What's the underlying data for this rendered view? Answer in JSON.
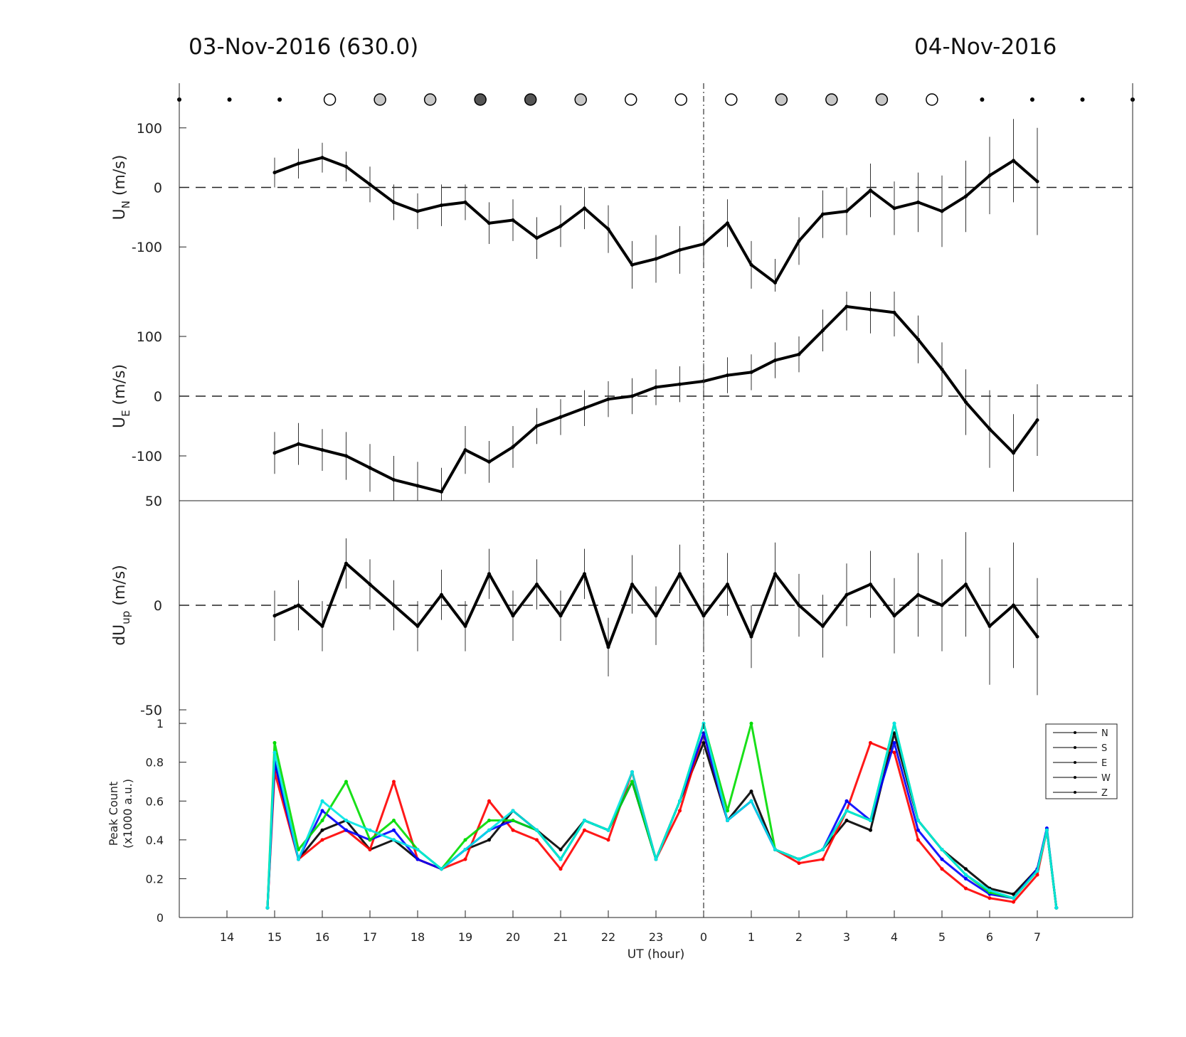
{
  "titles": {
    "left": "03-Nov-2016 (630.0)",
    "right": "04-Nov-2016"
  },
  "chart_data": [
    {
      "type": "scatter",
      "panel": "moon-indicator",
      "x": [
        "13",
        "14",
        "15",
        "16",
        "17",
        "18",
        "19",
        "20",
        "21",
        "22",
        "23",
        "0",
        "1",
        "2",
        "3",
        "4",
        "5",
        "6",
        "7",
        "8"
      ],
      "marker": [
        "dot",
        "dot",
        "dot",
        "open",
        "light",
        "light",
        "dark",
        "dark",
        "light",
        "open",
        "open",
        "open",
        "light",
        "light",
        "light",
        "open",
        "dot",
        "dot",
        "dot",
        "dot"
      ],
      "colors": {
        "open": "#ffffff",
        "light": "#c8c8c8",
        "dark": "#555555",
        "dot": "#000000"
      }
    },
    {
      "type": "line",
      "panel": "U_N",
      "ylabel": "U_N (m/s)",
      "ylabel_main": "U",
      "ylabel_sub": "N",
      "ylabel_unit": " (m/s)",
      "ylim": [
        -175,
        175
      ],
      "yticks": [
        100,
        0,
        -100
      ],
      "ytick_labels": [
        "100",
        "0",
        "-100"
      ],
      "x_hours_since_13UT": [
        2.0,
        2.5,
        3.0,
        3.5,
        4.0,
        4.5,
        5.0,
        5.5,
        6.0,
        6.5,
        7.0,
        7.5,
        8.0,
        8.5,
        9.0,
        9.5,
        10.0,
        10.5,
        11.0,
        11.5,
        12.0,
        12.5,
        13.0,
        13.5,
        14.0,
        14.5,
        15.0,
        15.5,
        16.0,
        16.5,
        17.0,
        17.5,
        18.0
      ],
      "values": [
        25,
        40,
        50,
        35,
        5,
        -25,
        -40,
        -30,
        -25,
        -60,
        -55,
        -85,
        -65,
        -35,
        -70,
        -130,
        -120,
        -105,
        -95,
        -60,
        -130,
        -160,
        -90,
        -45,
        -40,
        -5,
        -35,
        -25,
        -40,
        -15,
        20,
        45,
        10
      ],
      "errors": [
        25,
        25,
        25,
        25,
        30,
        30,
        30,
        35,
        30,
        35,
        35,
        35,
        35,
        35,
        40,
        40,
        40,
        40,
        40,
        40,
        40,
        40,
        40,
        40,
        40,
        45,
        45,
        50,
        60,
        60,
        65,
        70,
        90
      ]
    },
    {
      "type": "line",
      "panel": "U_E",
      "ylabel": "U_E (m/s)",
      "ylabel_main": "U",
      "ylabel_sub": "E",
      "ylabel_unit": " (m/s)",
      "ylim": [
        -175,
        175
      ],
      "yticks": [
        100,
        0,
        -100
      ],
      "ytick_labels": [
        "100",
        "0",
        "-100"
      ],
      "x_hours_since_13UT": [
        2.0,
        2.5,
        3.0,
        3.5,
        4.0,
        4.5,
        5.0,
        5.5,
        6.0,
        6.5,
        7.0,
        7.5,
        8.0,
        8.5,
        9.0,
        9.5,
        10.0,
        10.5,
        11.0,
        11.5,
        12.0,
        12.5,
        13.0,
        13.5,
        14.0,
        14.5,
        15.0,
        15.5,
        16.0,
        16.5,
        17.0,
        17.5,
        18.0
      ],
      "values": [
        -95,
        -80,
        -90,
        -100,
        -120,
        -140,
        -150,
        -160,
        -90,
        -110,
        -85,
        -50,
        -35,
        -20,
        -5,
        0,
        15,
        20,
        25,
        35,
        40,
        60,
        70,
        110,
        150,
        145,
        140,
        95,
        45,
        -10,
        -55,
        -95,
        -40
      ],
      "errors": [
        35,
        35,
        35,
        40,
        40,
        40,
        40,
        40,
        40,
        35,
        35,
        30,
        30,
        30,
        30,
        30,
        30,
        30,
        30,
        30,
        30,
        30,
        30,
        35,
        40,
        40,
        40,
        40,
        45,
        55,
        65,
        65,
        60
      ]
    },
    {
      "type": "line",
      "panel": "dU_up",
      "ylabel": "dU_up (m/s)",
      "ylabel_main": "dU",
      "ylabel_sub": "up",
      "ylabel_unit": " (m/s)",
      "ylim": [
        -50,
        50
      ],
      "yticks": [
        50,
        0,
        -50
      ],
      "ytick_labels": [
        "50",
        "0",
        "-50"
      ],
      "x_hours_since_13UT": [
        2.0,
        2.5,
        3.0,
        3.5,
        4.0,
        4.5,
        5.0,
        5.5,
        6.0,
        6.5,
        7.0,
        7.5,
        8.0,
        8.5,
        9.0,
        9.5,
        10.0,
        10.5,
        11.0,
        11.5,
        12.0,
        12.5,
        13.0,
        13.5,
        14.0,
        14.5,
        15.0,
        15.5,
        16.0,
        16.5,
        17.0,
        17.5,
        18.0
      ],
      "values": [
        -5,
        0,
        -10,
        20,
        10,
        0,
        -10,
        5,
        -10,
        15,
        -5,
        10,
        -5,
        15,
        -20,
        10,
        -5,
        15,
        -5,
        10,
        -15,
        15,
        0,
        -10,
        5,
        10,
        -5,
        5,
        0,
        10,
        -10,
        0,
        -15
      ],
      "errors": [
        12,
        12,
        12,
        12,
        12,
        12,
        12,
        12,
        12,
        12,
        12,
        12,
        12,
        12,
        14,
        14,
        14,
        14,
        15,
        15,
        15,
        15,
        15,
        15,
        15,
        16,
        18,
        20,
        22,
        25,
        28,
        30,
        28
      ]
    },
    {
      "type": "line",
      "panel": "peak-count",
      "ylabel": "Peak Count",
      "ylabel2": "(x1000 a.u.)",
      "xlabel": "UT (hour)",
      "ylim": [
        0,
        1.0
      ],
      "yticks": [
        1,
        0.8,
        0.6,
        0.4,
        0.2,
        0
      ],
      "ytick_labels": [
        "1",
        "0.8",
        "0.6",
        "0.4",
        "0.2",
        "0"
      ],
      "xticks": [
        "14",
        "15",
        "16",
        "17",
        "18",
        "19",
        "20",
        "21",
        "22",
        "23",
        "0",
        "1",
        "2",
        "3",
        "4",
        "5",
        "6",
        "7"
      ],
      "x_hours_since_13UT": [
        1.85,
        2.0,
        2.5,
        3.0,
        3.5,
        4.0,
        4.5,
        5.0,
        5.5,
        6.0,
        6.5,
        7.0,
        7.5,
        8.0,
        8.5,
        9.0,
        9.5,
        10.0,
        10.5,
        11.0,
        11.5,
        12.0,
        12.5,
        13.0,
        13.5,
        14.0,
        14.5,
        15.0,
        15.5,
        16.0,
        16.5,
        17.0,
        17.5,
        18.0,
        18.2,
        18.4
      ],
      "series": [
        {
          "name": "N",
          "color": "#000000",
          "values": [
            0.05,
            0.8,
            0.3,
            0.45,
            0.5,
            0.35,
            0.4,
            0.3,
            0.25,
            0.35,
            0.4,
            0.55,
            0.45,
            0.35,
            0.5,
            0.45,
            0.7,
            0.3,
            0.6,
            0.9,
            0.5,
            0.65,
            0.35,
            0.3,
            0.35,
            0.5,
            0.45,
            0.95,
            0.5,
            0.35,
            0.25,
            0.15,
            0.12,
            0.25,
            0.45,
            0.05
          ]
        },
        {
          "name": "S",
          "color": "#ff0000",
          "values": [
            0.05,
            0.75,
            0.3,
            0.4,
            0.45,
            0.35,
            0.7,
            0.3,
            0.25,
            0.3,
            0.6,
            0.45,
            0.4,
            0.25,
            0.45,
            0.4,
            0.75,
            0.3,
            0.55,
            0.95,
            0.5,
            0.6,
            0.35,
            0.28,
            0.3,
            0.55,
            0.9,
            0.85,
            0.4,
            0.25,
            0.15,
            0.1,
            0.08,
            0.22,
            0.45,
            0.05
          ]
        },
        {
          "name": "E",
          "color": "#0000ff",
          "values": [
            0.05,
            0.8,
            0.3,
            0.55,
            0.45,
            0.4,
            0.45,
            0.3,
            0.25,
            0.35,
            0.45,
            0.5,
            0.45,
            0.3,
            0.5,
            0.45,
            0.7,
            0.3,
            0.6,
            0.95,
            0.5,
            0.6,
            0.35,
            0.3,
            0.35,
            0.6,
            0.5,
            0.9,
            0.45,
            0.3,
            0.2,
            0.12,
            0.1,
            0.25,
            0.46,
            0.05
          ]
        },
        {
          "name": "W",
          "color": "#00dd00",
          "values": [
            0.05,
            0.9,
            0.35,
            0.5,
            0.7,
            0.4,
            0.5,
            0.35,
            0.25,
            0.4,
            0.5,
            0.5,
            0.45,
            0.3,
            0.5,
            0.45,
            0.7,
            0.3,
            0.6,
            1.0,
            0.55,
            1.0,
            0.35,
            0.3,
            0.35,
            0.55,
            0.5,
            1.0,
            0.5,
            0.35,
            0.22,
            0.13,
            0.1,
            0.24,
            0.45,
            0.05
          ]
        },
        {
          "name": "Z",
          "color": "#00e5e5",
          "values": [
            0.05,
            0.85,
            0.3,
            0.6,
            0.5,
            0.45,
            0.4,
            0.35,
            0.25,
            0.35,
            0.45,
            0.55,
            0.45,
            0.3,
            0.5,
            0.45,
            0.75,
            0.3,
            0.6,
            1.0,
            0.5,
            0.6,
            0.35,
            0.3,
            0.35,
            0.55,
            0.5,
            1.0,
            0.5,
            0.35,
            0.22,
            0.14,
            0.1,
            0.24,
            0.45,
            0.05
          ]
        }
      ],
      "legend_position": "top-right"
    }
  ]
}
